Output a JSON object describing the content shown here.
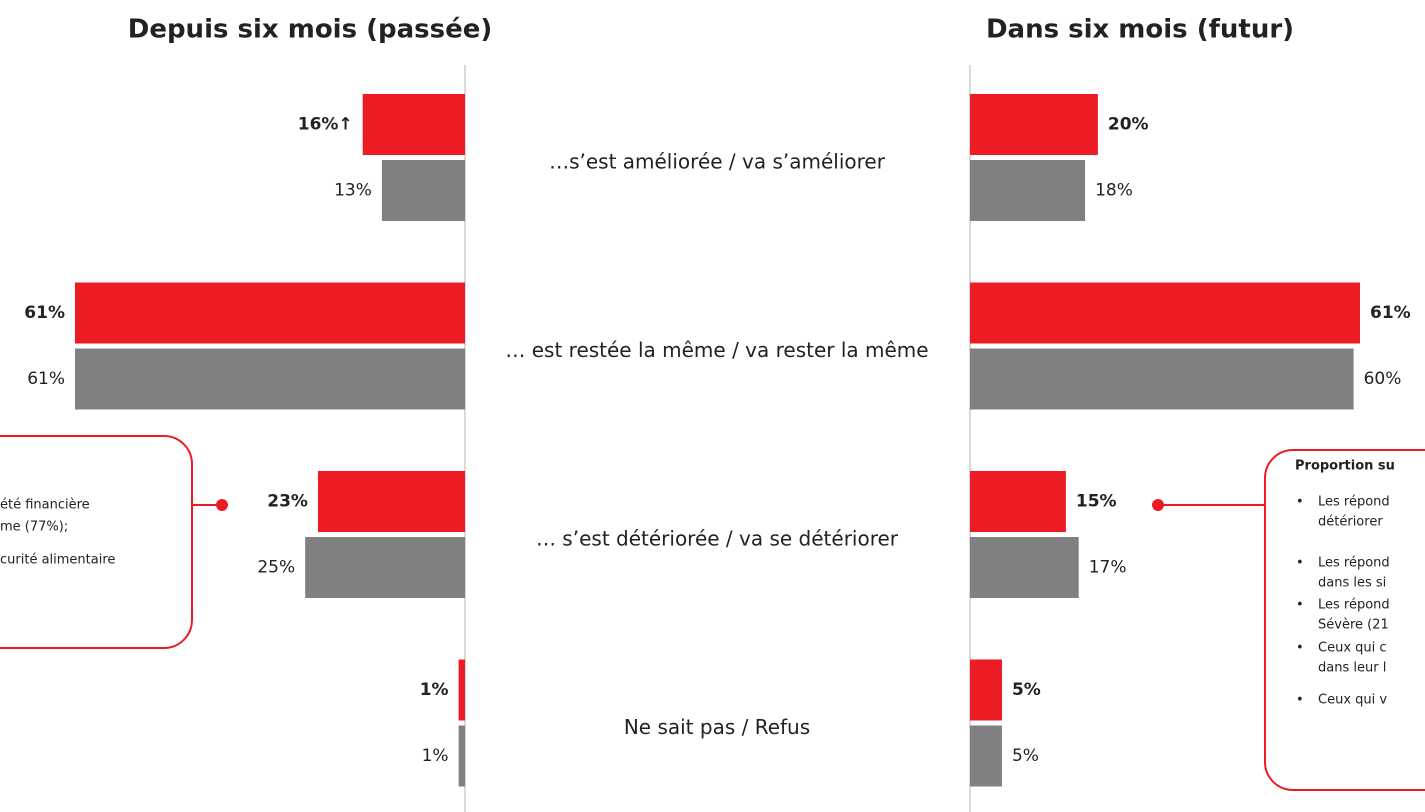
{
  "chart_data": [
    {
      "type": "bar",
      "orientation": "left",
      "title": "Depuis six mois (passée)",
      "categories": [
        "…s’est améliorée / va s’améliorer",
        "… est restée la même / va rester la même",
        "… s’est détériorée / va se détériorer",
        "Ne sait pas / Refus"
      ],
      "xlim": [
        0,
        61
      ],
      "series": [
        {
          "color": "#ed1c24",
          "bold": true,
          "values": [
            16,
            61,
            23,
            1
          ],
          "value_labels": [
            "16%↑",
            "61%",
            "23%",
            "1%"
          ]
        },
        {
          "color": "#808080",
          "bold": false,
          "values": [
            13,
            61,
            25,
            1
          ],
          "value_labels": [
            "13%",
            "61%",
            "25%",
            "1%"
          ]
        }
      ]
    },
    {
      "type": "bar",
      "orientation": "right",
      "title": "Dans six mois (futur)",
      "xlim": [
        0,
        61
      ],
      "series": [
        {
          "color": "#ed1c24",
          "bold": true,
          "values": [
            20,
            61,
            15,
            5
          ],
          "value_labels": [
            "20%",
            "61%",
            "15%",
            "5%"
          ]
        },
        {
          "color": "#808080",
          "bold": false,
          "values": [
            18,
            60,
            17,
            5
          ],
          "value_labels": [
            "18%",
            "60%",
            "17%",
            "5%"
          ]
        }
      ]
    }
  ],
  "annotations": {
    "left_callout": [
      "été financière",
      "me (77%);",
      "curité alimentaire"
    ],
    "right_callout": {
      "title": "Proportion su",
      "bullets": [
        [
          "Les répond",
          "détériorer"
        ],
        [
          "Les répond",
          "dans les si"
        ],
        [
          "Les répond",
          "Sévère (21"
        ],
        [
          "Ceux qui c",
          "dans leur l"
        ],
        [
          "Ceux qui v"
        ]
      ]
    }
  }
}
